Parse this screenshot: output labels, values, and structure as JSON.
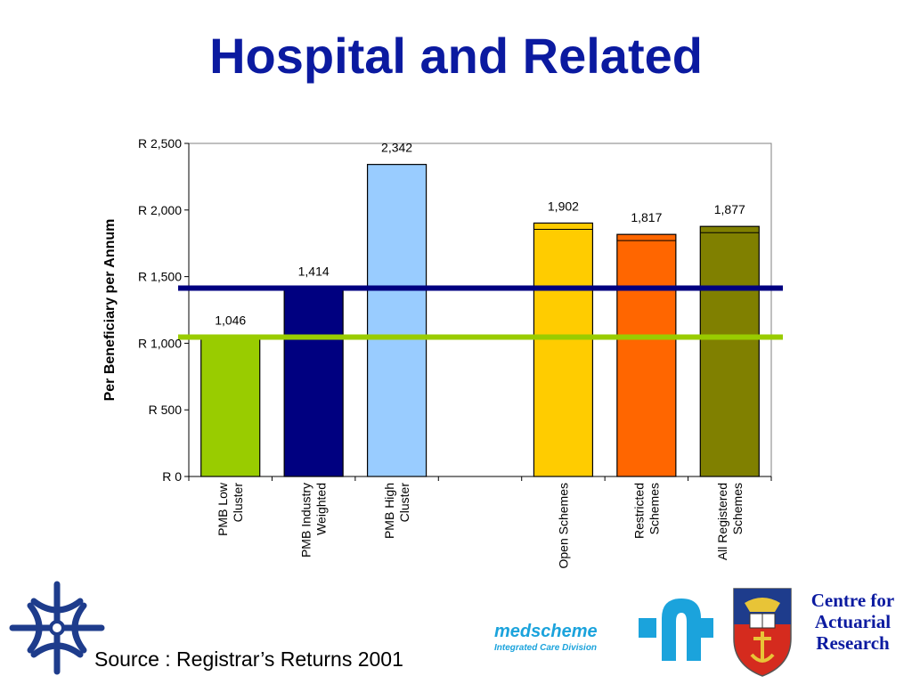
{
  "title": "Hospital and Related",
  "source": "Source : Registrar’s Returns 2001",
  "chart_data": {
    "type": "bar",
    "ylabel": "Per Beneficiary per Annum",
    "ylim": [
      0,
      2500
    ],
    "yticks": [
      "R 0",
      "R 500",
      "R 1,000",
      "R 1,500",
      "R 2,000",
      "R 2,500"
    ],
    "ytick_values": [
      0,
      500,
      1000,
      1500,
      2000,
      2500
    ],
    "categories": [
      [
        "PMB Low",
        "Cluster"
      ],
      [
        "PMB Industry",
        "Weighted"
      ],
      [
        "PMB High",
        "Cluster"
      ],
      [],
      [
        "Open Schemes"
      ],
      [
        "Restricted",
        "Schemes"
      ],
      [
        "All Registered",
        "Schemes"
      ]
    ],
    "values": [
      1046,
      1414,
      2342,
      null,
      1902,
      1817,
      1877
    ],
    "value_labels": [
      "1,046",
      "1,414",
      "2,342",
      "",
      "1,902",
      "1,817",
      "1,877"
    ],
    "colors": [
      "#99CC00",
      "#000080",
      "#99CCFF",
      "",
      "#FFCC00",
      "#FF6600",
      "#808000"
    ],
    "reference_lines": [
      {
        "value": 1414,
        "color": "#000080"
      },
      {
        "value": 1046,
        "color": "#99CC00"
      }
    ],
    "grid": false
  },
  "logos": {
    "medscheme_name": "medscheme",
    "medscheme_tagline": "Integrated Care Division",
    "car_lines": [
      "Centre for",
      "Actuarial",
      "Research"
    ]
  }
}
